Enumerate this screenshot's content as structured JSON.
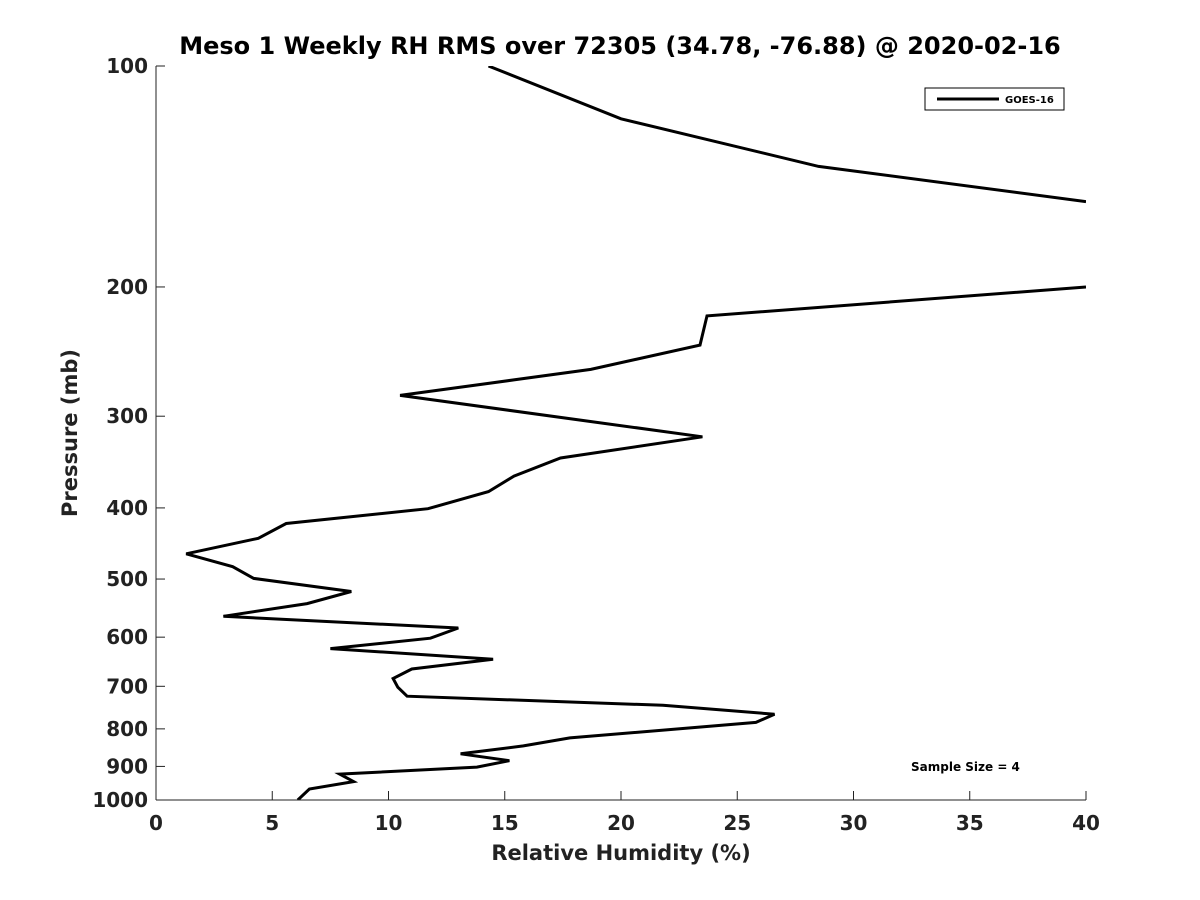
{
  "chart_data": {
    "type": "line",
    "title": "Meso 1 Weekly RH RMS over 72305 (34.78, -76.88) @ 2020-02-16",
    "xlabel": "Relative Humidity (%)",
    "ylabel": "Pressure (mb)",
    "xlim": [
      0,
      40
    ],
    "ylim": [
      100,
      1000
    ],
    "y_scale": "log",
    "y_reversed": true,
    "x_ticks": [
      "0",
      "5",
      "10",
      "15",
      "20",
      "25",
      "30",
      "35",
      "40"
    ],
    "y_ticks": [
      "100",
      "200",
      "300",
      "400",
      "500",
      "600",
      "700",
      "800",
      "900",
      "1000"
    ],
    "grid": false,
    "legend": {
      "position": "top-right",
      "entries": [
        "GOES-16"
      ]
    },
    "annotations": [
      {
        "text": "Sample Size = 4",
        "position": "bottom-right"
      }
    ],
    "series": [
      {
        "name": "GOES-16",
        "color": "#000000",
        "points": [
          {
            "x": 14.3,
            "y": 100
          },
          {
            "x": 20.0,
            "y": 118
          },
          {
            "x": 28.5,
            "y": 137
          },
          {
            "x": 40.0,
            "y": 153
          },
          {
            "x": null,
            "y": null
          },
          {
            "x": 40.0,
            "y": 200
          },
          {
            "x": 23.7,
            "y": 219
          },
          {
            "x": 23.4,
            "y": 240
          },
          {
            "x": 18.7,
            "y": 259
          },
          {
            "x": 10.5,
            "y": 281
          },
          {
            "x": 23.5,
            "y": 320
          },
          {
            "x": 17.4,
            "y": 342
          },
          {
            "x": 15.4,
            "y": 362
          },
          {
            "x": 14.3,
            "y": 380
          },
          {
            "x": 11.7,
            "y": 401
          },
          {
            "x": 5.6,
            "y": 420
          },
          {
            "x": 4.4,
            "y": 440
          },
          {
            "x": 1.3,
            "y": 462
          },
          {
            "x": 3.3,
            "y": 481
          },
          {
            "x": 4.2,
            "y": 499
          },
          {
            "x": 8.4,
            "y": 520
          },
          {
            "x": 6.5,
            "y": 540
          },
          {
            "x": 2.9,
            "y": 562
          },
          {
            "x": 13.0,
            "y": 583
          },
          {
            "x": 11.8,
            "y": 602
          },
          {
            "x": 7.5,
            "y": 622
          },
          {
            "x": 14.5,
            "y": 643
          },
          {
            "x": 11.0,
            "y": 663
          },
          {
            "x": 10.2,
            "y": 683
          },
          {
            "x": 10.4,
            "y": 702
          },
          {
            "x": 10.8,
            "y": 722
          },
          {
            "x": 21.8,
            "y": 743
          },
          {
            "x": 26.6,
            "y": 764
          },
          {
            "x": 25.8,
            "y": 784
          },
          {
            "x": 17.8,
            "y": 823
          },
          {
            "x": 15.8,
            "y": 844
          },
          {
            "x": 13.1,
            "y": 865
          },
          {
            "x": 15.2,
            "y": 884
          },
          {
            "x": 13.8,
            "y": 902
          },
          {
            "x": 7.9,
            "y": 922
          },
          {
            "x": 8.5,
            "y": 944
          },
          {
            "x": 6.6,
            "y": 966
          },
          {
            "x": 6.1,
            "y": 1000
          }
        ]
      }
    ]
  }
}
